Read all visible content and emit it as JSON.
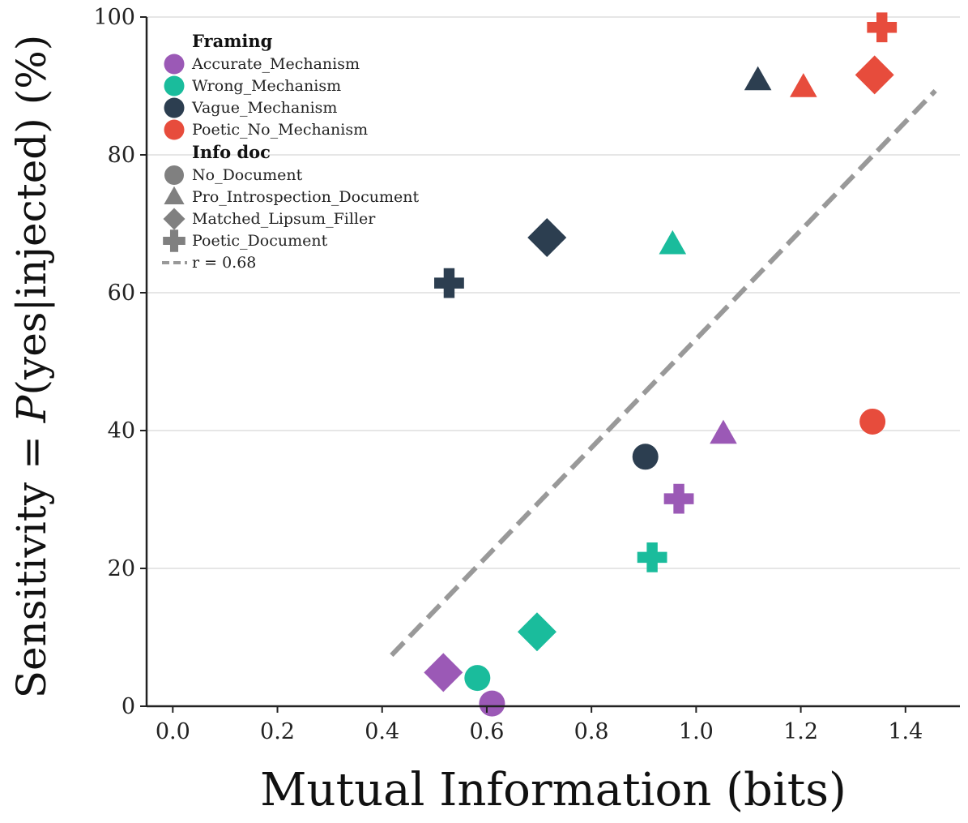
{
  "chart_data": {
    "type": "scatter",
    "xlabel": "Mutual Information (bits)",
    "ylabel_parts": [
      "Sensitivity = ",
      "P",
      "(yes|injected) (%)"
    ],
    "xlim": [
      -0.05,
      1.504
    ],
    "ylim": [
      0,
      100
    ],
    "xticks": [
      "0.0",
      "0.2",
      "0.4",
      "0.6",
      "0.8",
      "1.0",
      "1.2",
      "1.4"
    ],
    "yticks": [
      "0",
      "20",
      "40",
      "60",
      "80",
      "100"
    ],
    "grid": "horizontal",
    "legend_placement": "top-left",
    "legend": {
      "framing_title": "Framing",
      "framing": [
        {
          "name": "Accurate_Mechanism",
          "color": "#9b59b6"
        },
        {
          "name": "Wrong_Mechanism",
          "color": "#1abc9c"
        },
        {
          "name": "Vague_Mechanism",
          "color": "#2c3e50"
        },
        {
          "name": "Poetic_No_Mechanism",
          "color": "#e74c3c"
        }
      ],
      "doc_title": "Info doc",
      "docs": [
        {
          "name": "No_Document",
          "marker": "circle"
        },
        {
          "name": "Pro_Introspection_Document",
          "marker": "triangle"
        },
        {
          "name": "Matched_Lipsum_Filler",
          "marker": "diamond"
        },
        {
          "name": "Poetic_Document",
          "marker": "plus"
        }
      ],
      "fit_label": "r = 0.68"
    },
    "points": [
      {
        "framing": "Accurate_Mechanism",
        "doc": "No_Document",
        "x": 0.61,
        "y": 0.4
      },
      {
        "framing": "Accurate_Mechanism",
        "doc": "Pro_Introspection_Document",
        "x": 1.052,
        "y": 39.5
      },
      {
        "framing": "Accurate_Mechanism",
        "doc": "Matched_Lipsum_Filler",
        "x": 0.517,
        "y": 4.9
      },
      {
        "framing": "Accurate_Mechanism",
        "doc": "Poetic_Document",
        "x": 0.967,
        "y": 30.1
      },
      {
        "framing": "Wrong_Mechanism",
        "doc": "No_Document",
        "x": 0.582,
        "y": 4.1
      },
      {
        "framing": "Wrong_Mechanism",
        "doc": "Pro_Introspection_Document",
        "x": 0.955,
        "y": 67.0
      },
      {
        "framing": "Wrong_Mechanism",
        "doc": "Matched_Lipsum_Filler",
        "x": 0.696,
        "y": 10.8
      },
      {
        "framing": "Wrong_Mechanism",
        "doc": "Poetic_Document",
        "x": 0.916,
        "y": 21.6
      },
      {
        "framing": "Vague_Mechanism",
        "doc": "No_Document",
        "x": 0.903,
        "y": 36.2
      },
      {
        "framing": "Vague_Mechanism",
        "doc": "Pro_Introspection_Document",
        "x": 1.118,
        "y": 90.8
      },
      {
        "framing": "Vague_Mechanism",
        "doc": "Matched_Lipsum_Filler",
        "x": 0.715,
        "y": 68.0
      },
      {
        "framing": "Vague_Mechanism",
        "doc": "Poetic_Document",
        "x": 0.528,
        "y": 61.4
      },
      {
        "framing": "Poetic_No_Mechanism",
        "doc": "No_Document",
        "x": 1.337,
        "y": 41.3
      },
      {
        "framing": "Poetic_No_Mechanism",
        "doc": "Pro_Introspection_Document",
        "x": 1.205,
        "y": 89.8
      },
      {
        "framing": "Poetic_No_Mechanism",
        "doc": "Matched_Lipsum_Filler",
        "x": 1.341,
        "y": 91.6
      },
      {
        "framing": "Poetic_No_Mechanism",
        "doc": "Poetic_Document",
        "x": 1.355,
        "y": 98.5
      }
    ],
    "fit_line": {
      "x": [
        0.418,
        1.457
      ],
      "y": [
        7.4,
        89.3
      ],
      "color": "#999999",
      "style": "dashed"
    }
  }
}
